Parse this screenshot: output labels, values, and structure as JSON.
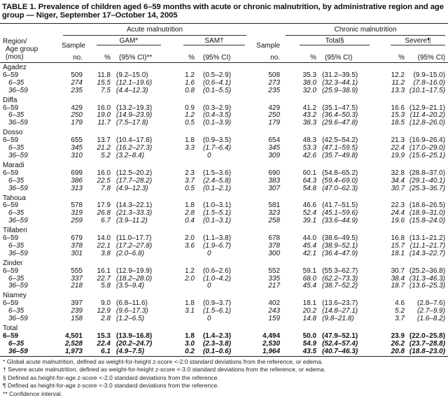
{
  "title": "TABLE 1. Prevalence of children aged 6–59 months with acute or chronic malnutrition, by administrative region and age group — Niger, September 17–October 14, 2005",
  "header": {
    "region_l1": "Region/",
    "region_l2": "Age group",
    "region_l3": "(mos)",
    "acute": "Acute malnutrition",
    "chronic": "Chronic malnutrition",
    "sample_l1": "Sample",
    "sample_l2": "no.",
    "gam": "GAM*",
    "sam": "SAM†",
    "total": "Total§",
    "severe": "Severe¶",
    "pct": "%",
    "ci_gam": "(95% CI)**",
    "ci": "(95% CI)"
  },
  "regions": [
    {
      "name": "Agadez",
      "rows": [
        [
          "6–59",
          "509",
          "11.8",
          "(9.2–15.0)",
          "1.2",
          "(0.5–2.9)",
          "508",
          "35.3",
          "(31.2–39.5)",
          "12.2",
          "(9.9–15.0)"
        ],
        [
          "6–35",
          "274",
          "15.5",
          "(12.1–19.6)",
          "1.6",
          "(0.6–4.1)",
          "273",
          "38.0",
          "(32.3–44.1)",
          "11.2",
          "(7.8–16.0)"
        ],
        [
          "36–59",
          "235",
          "7.5",
          "(4.4–12.3)",
          "0.8",
          "(0.1–5.5)",
          "235",
          "32.0",
          "(25.9–38.9)",
          "13.3",
          "(10.1–17.5)"
        ]
      ]
    },
    {
      "name": "Diffa",
      "rows": [
        [
          "6–59",
          "429",
          "16.0",
          "(13.2–19.3)",
          "0.9",
          "(0.3–2.9)",
          "429",
          "41.2",
          "(35.1–47.5)",
          "16.6",
          "(12.9–21.1)"
        ],
        [
          "6–35",
          "250",
          "19.0",
          "(14.9–23.9)",
          "1.2",
          "(0.4–3.5)",
          "250",
          "43.2",
          "(36.4–50.3)",
          "15.3",
          "(11.4–20.2)"
        ],
        [
          "36–59",
          "179",
          "11.7",
          "(7.5–17.8)",
          "0.5",
          "(0.1–3.9)",
          "179",
          "38.3",
          "(29.6–47.8)",
          "18.5",
          "(12.8–26.0)"
        ]
      ]
    },
    {
      "name": "Dosso",
      "rows": [
        [
          "6–59",
          "655",
          "13.7",
          "(10.4–17.8)",
          "1.8",
          "(0.9–3.5)",
          "654",
          "48.3",
          "(42.5–54.2)",
          "21.3",
          "(16.9–26.4)"
        ],
        [
          "6–35",
          "345",
          "21.2",
          "(16.2–27.3)",
          "3.3",
          "(1.7–6.4)",
          "345",
          "53.3",
          "(47.1–59.5)",
          "22.4",
          "(17.0–29.0)"
        ],
        [
          "36–59",
          "310",
          "5.2",
          "(3.2–8.4)",
          "",
          "0",
          "309",
          "42.6",
          "(35.7–49.8)",
          "19.9",
          "(15.6–25.1)"
        ]
      ]
    },
    {
      "name": "Maradi",
      "rows": [
        [
          "6–59",
          "699",
          "16.0",
          "(12.5–20.2)",
          "2.3",
          "(1.5–3.6)",
          "690",
          "60.1",
          "(54.8–65.2)",
          "32.8",
          "(28.8–37.0)"
        ],
        [
          "6–35",
          "386",
          "22.5",
          "(17.7–28.2)",
          "3.7",
          "(2.4–5.8)",
          "383",
          "64.3",
          "(59.4–69.0)",
          "34.4",
          "(29.1–40.1)"
        ],
        [
          "36–59",
          "313",
          "7.8",
          "(4.9–12.3)",
          "0.5",
          "(0.1–2.1)",
          "307",
          "54.8",
          "(47.0–62.3)",
          "30.7",
          "(25.3–36.7)"
        ]
      ]
    },
    {
      "name": "Tahoua",
      "rows": [
        [
          "6–59",
          "578",
          "17.9",
          "(14.3–22.1)",
          "1.8",
          "(1.0–3.1)",
          "581",
          "46.6",
          "(41.7–51.5)",
          "22.3",
          "(18.6–26.5)"
        ],
        [
          "6–35",
          "319",
          "26.8",
          "(21.3–33.3)",
          "2.8",
          "(1.5–5.1)",
          "323",
          "52.4",
          "(45.1–59.6)",
          "24.4",
          "(18.9–31.0)"
        ],
        [
          "36–59",
          "259",
          "6.7",
          "(3.9–11.2)",
          "0.4",
          "(0.1–3.1)",
          "258",
          "39.1",
          "(33.6–44.9)",
          "19.6",
          "(15.8–24.0)"
        ]
      ]
    },
    {
      "name": "Tillaberi",
      "rows": [
        [
          "6–59",
          "679",
          "14.0",
          "(11.0–17.7)",
          "2.0",
          "(1.1–3.8)",
          "678",
          "44.0",
          "(38.6–49.5)",
          "16.8",
          "(13.1–21.2)"
        ],
        [
          "6–35",
          "378",
          "22.1",
          "(17.2–27.8)",
          "3.6",
          "(1.9–6.7)",
          "378",
          "45.4",
          "(38.9–52.1)",
          "15.7",
          "(11.1–21.7)"
        ],
        [
          "36–59",
          "301",
          "3.8",
          "(2.0–6.8)",
          "",
          "0",
          "300",
          "42.1",
          "(36.4–47.9)",
          "18.1",
          "(14.3–22.7)"
        ]
      ]
    },
    {
      "name": "Zinder",
      "rows": [
        [
          "6–59",
          "555",
          "16.1",
          "(12.9–19.9)",
          "1.2",
          "(0.6–2.6)",
          "552",
          "59.1",
          "(55.3–62.7)",
          "30.7",
          "(25.2–36.8)"
        ],
        [
          "6–35",
          "337",
          "22.7",
          "(18.2–28.0)",
          "2.0",
          "(1.0–4.2)",
          "335",
          "68.0",
          "(62.2–73.3)",
          "38.4",
          "(31.3–46.3)"
        ],
        [
          "36–59",
          "218",
          "5.8",
          "(3.5–9.4)",
          "",
          "0",
          "217",
          "45.4",
          "(38.7–52.2)",
          "18.7",
          "(13.6–25.3)"
        ]
      ]
    },
    {
      "name": "Niamey",
      "rows": [
        [
          "6–59",
          "397",
          "9.0",
          "(6.8–11.6)",
          "1.8",
          "(0.9–3.7)",
          "402",
          "18.1",
          "(13.6–23.7)",
          "4.6",
          "(2.8–7.6)"
        ],
        [
          "6–35",
          "239",
          "12.9",
          "(9.6–17.3)",
          "3.1",
          "(1.5–6.1)",
          "243",
          "20.2",
          "(14.8–27.1)",
          "5.2",
          "(2.7–9.9)"
        ],
        [
          "36–59",
          "158",
          "2.8",
          "(1.2–6.5)",
          "",
          "0",
          "159",
          "14.8",
          "(9.8–21.8)",
          "3.7",
          "(1.6–8.2)"
        ]
      ]
    },
    {
      "name": "Total",
      "total": true,
      "rows": [
        [
          "6–59",
          "4,501",
          "15.3",
          "(13.9–16.8)",
          "1.8",
          "(1.4–2.3)",
          "4,494",
          "50.0",
          "(47.9–52.1)",
          "23.9",
          "(22.0–25.8)"
        ],
        [
          "6–35",
          "2,528",
          "22.4",
          "(20.2–24.7)",
          "3.0",
          "(2.3–3.8)",
          "2,530",
          "54.9",
          "(52.4–57.4)",
          "26.2",
          "(23.7–28.8)"
        ],
        [
          "36–59",
          "1,973",
          "6.1",
          "(4.9–7.5)",
          "0.2",
          "(0.1–0.6)",
          "1,964",
          "43.5",
          "(40.7–46.3)",
          "20.8",
          "(18.8–23.0)"
        ]
      ]
    }
  ],
  "footnotes": [
    "* Global acute malnutrition, defined as weight-for-height z-score <-2.0 standard deviations from the reference, or edema.",
    "† Severe acute malnutrition, defined as weight-for-height z-score <-3.0 standard deviations from the reference, or edema.",
    "§ Defined as height-for-age z-score <-2.0 standard deviations from the reference.",
    "¶ Defined as height-for-age z-score <-3.0 standard deviations from the reference.",
    "** Confidence interval."
  ]
}
